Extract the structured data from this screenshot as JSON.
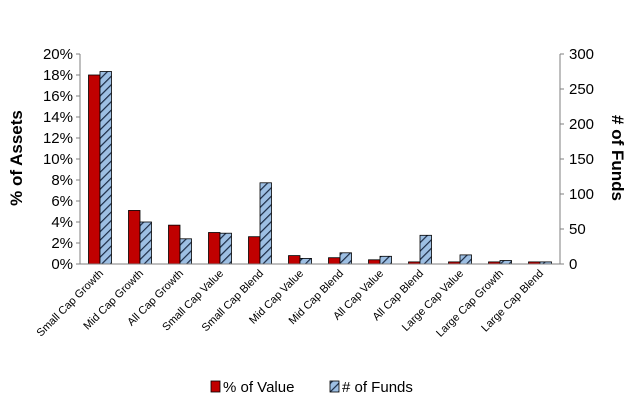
{
  "chart_data": {
    "type": "bar",
    "categories": [
      "Small Cap Growth",
      "Mid Cap Growth",
      "All Cap Growth",
      "Small Cap Value",
      "Small Cap Blend",
      "Mid Cap Value",
      "Mid Cap Blend",
      "All Cap Value",
      "All Cap Blend",
      "Large Cap Value",
      "Large Cap Growth",
      "Large Cap Blend"
    ],
    "series": [
      {
        "name": "% of Value",
        "axis": "left",
        "color": "#c00000",
        "pattern": "solid",
        "values": [
          18.0,
          5.1,
          3.7,
          3.0,
          2.6,
          0.8,
          0.6,
          0.4,
          0.2,
          0.2,
          0.2,
          0.2
        ]
      },
      {
        "name": "# of Funds",
        "axis": "right",
        "color": "#8fb4dc",
        "pattern": "diagonal-hatch",
        "values": [
          275,
          60,
          36,
          44,
          116,
          8,
          16,
          11,
          41,
          13,
          5,
          3
        ]
      }
    ],
    "ylabel": "% of Assets",
    "y2label": "# of Funds",
    "ylim": [
      0,
      20
    ],
    "y2lim": [
      0,
      300
    ],
    "yticks": [
      "0%",
      "2%",
      "4%",
      "6%",
      "8%",
      "10%",
      "12%",
      "14%",
      "16%",
      "18%",
      "20%"
    ],
    "y2ticks": [
      "0",
      "50",
      "100",
      "150",
      "200",
      "250",
      "300"
    ],
    "grid": false,
    "legend": "bottom"
  }
}
